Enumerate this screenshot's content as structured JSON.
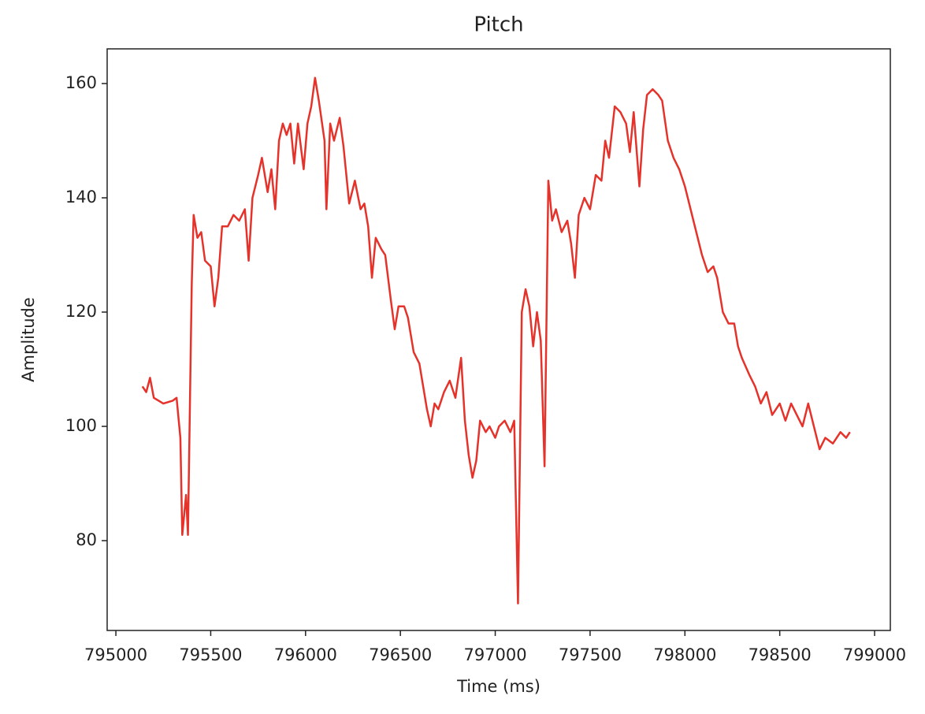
{
  "chart_data": {
    "type": "line",
    "title": "Pitch",
    "x_label": "Time (ms)",
    "y_label": "Amplitude",
    "color": "#e5322a",
    "x": [
      795140,
      795160,
      795180,
      795200,
      795250,
      795300,
      795320,
      795340,
      795350,
      795370,
      795380,
      795400,
      795410,
      795430,
      795450,
      795470,
      795500,
      795520,
      795540,
      795560,
      795590,
      795620,
      795650,
      795680,
      795700,
      795720,
      795750,
      795770,
      795800,
      795820,
      795840,
      795860,
      795880,
      795900,
      795920,
      795940,
      795960,
      795990,
      796010,
      796030,
      796050,
      796070,
      796100,
      796110,
      796130,
      796150,
      796180,
      796200,
      796230,
      796260,
      796290,
      796310,
      796330,
      796350,
      796370,
      796400,
      796420,
      796450,
      796470,
      796490,
      796520,
      796540,
      796570,
      796600,
      796620,
      796640,
      796660,
      796680,
      796700,
      796730,
      796760,
      796790,
      796820,
      796840,
      796860,
      796880,
      796900,
      796920,
      796950,
      796970,
      797000,
      797020,
      797050,
      797080,
      797100,
      797110,
      797120,
      797140,
      797160,
      797180,
      797200,
      797220,
      797240,
      797260,
      797280,
      797300,
      797320,
      797350,
      797380,
      797400,
      797420,
      797440,
      797470,
      797500,
      797530,
      797560,
      797580,
      797600,
      797630,
      797660,
      797690,
      797710,
      797730,
      797760,
      797780,
      797800,
      797830,
      797860,
      797880,
      797910,
      797940,
      797970,
      798000,
      798030,
      798060,
      798090,
      798120,
      798150,
      798170,
      798200,
      798230,
      798260,
      798280,
      798300,
      798340,
      798370,
      798400,
      798430,
      798460,
      798500,
      798530,
      798560,
      798590,
      798620,
      798650,
      798680,
      798710,
      798740,
      798780,
      798820,
      798850,
      798870
    ],
    "values": [
      107,
      106,
      108.5,
      105,
      104,
      104.5,
      105,
      98,
      81,
      88,
      81,
      125,
      137,
      133,
      134,
      129,
      128,
      121,
      126,
      135,
      135,
      137,
      136,
      138,
      129,
      140,
      144,
      147,
      141,
      145,
      138,
      150,
      153,
      151,
      153,
      146,
      153,
      145,
      153,
      156,
      161,
      157,
      150,
      138,
      153,
      150,
      154,
      149,
      139,
      143,
      138,
      139,
      135,
      126,
      133,
      131,
      130,
      122,
      117,
      121,
      121,
      119,
      113,
      111,
      107,
      103,
      100,
      104,
      103,
      106,
      108,
      105,
      112,
      101,
      95,
      91,
      94,
      101,
      99,
      100,
      98,
      100,
      101,
      99,
      101,
      85,
      69,
      120,
      124,
      121,
      114,
      120,
      115,
      93,
      143,
      136,
      138,
      134,
      136,
      132,
      126,
      137,
      140,
      138,
      144,
      143,
      150,
      147,
      156,
      155,
      153,
      148,
      155,
      142,
      152,
      158,
      159,
      158,
      157,
      150,
      147,
      145,
      142,
      138,
      134,
      130,
      127,
      128,
      126,
      120,
      118,
      118,
      114,
      112,
      109,
      107,
      104,
      106,
      102,
      104,
      101,
      104,
      102,
      100,
      104,
      100,
      96,
      98,
      97,
      99,
      98,
      99
    ],
    "xlim": [
      794954,
      799083
    ],
    "ylim": [
      64.28,
      166.07
    ],
    "xticks": [
      795000,
      795500,
      796000,
      796500,
      797000,
      797500,
      798000,
      798500,
      799000
    ],
    "yticks": [
      80,
      100,
      120,
      140,
      160
    ]
  }
}
